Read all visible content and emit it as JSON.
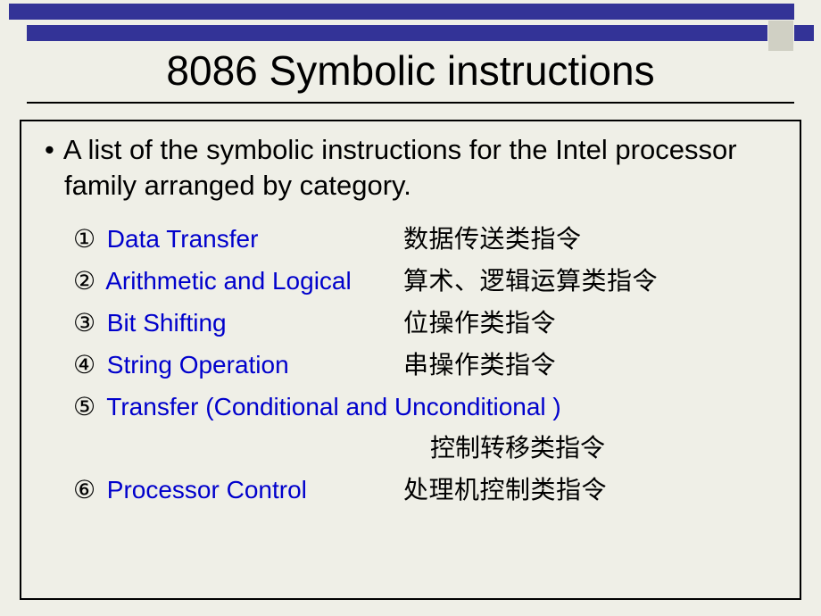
{
  "title": "8086 Symbolic instructions",
  "intro_bullet": "•",
  "intro_text": "A list of the symbolic instructions for the Intel processor family arranged by category.",
  "categories": [
    {
      "num": "①",
      "en": "Data Transfer",
      "cn": "数据传送类指令"
    },
    {
      "num": "②",
      "en": "Arithmetic and Logical",
      "cn": "算术、逻辑运算类指令"
    },
    {
      "num": "③",
      "en": "Bit Shifting",
      "cn": "位操作类指令"
    },
    {
      "num": "④",
      "en": "String Operation",
      "cn": "串操作类指令"
    },
    {
      "num": "⑤",
      "en": "Transfer (Conditional and Unconditional )",
      "cn": "控制转移类指令"
    },
    {
      "num": "⑥",
      "en": "Processor Control",
      "cn": "处理机控制类指令"
    }
  ],
  "colors": {
    "background": "#efefe7",
    "bar": "#333397",
    "link": "#0000cc",
    "text": "#000000"
  }
}
